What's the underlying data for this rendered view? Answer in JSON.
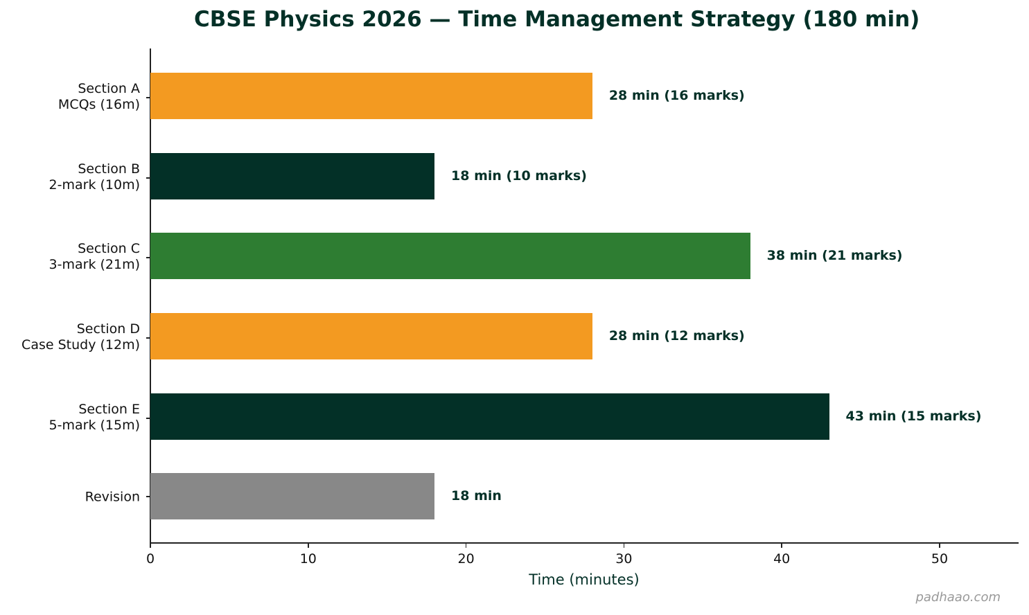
{
  "chart_data": {
    "type": "bar",
    "orientation": "horizontal",
    "title": "CBSE Physics 2026 — Time Management Strategy (180 min)",
    "xlabel": "Time (minutes)",
    "ylabel": "",
    "xlim": [
      0,
      55
    ],
    "xticks": [
      "0",
      "10",
      "20",
      "30",
      "40",
      "50"
    ],
    "grid": false,
    "legend": null,
    "categories": [
      [
        "Section A",
        "MCQs (16m)"
      ],
      [
        "Section B",
        "2-mark (10m)"
      ],
      [
        "Section C",
        "3-mark (21m)"
      ],
      [
        "Section D",
        "Case Study (12m)"
      ],
      [
        "Section E",
        "5-mark (15m)"
      ],
      [
        "Revision"
      ]
    ],
    "values": [
      28,
      18,
      38,
      28,
      43,
      18
    ],
    "marks": [
      16,
      10,
      21,
      12,
      15,
      null
    ],
    "data_labels": [
      "28 min (16 marks)",
      "18 min (10 marks)",
      "38 min (21 marks)",
      "28 min (12 marks)",
      "43 min (15 marks)",
      "18 min"
    ],
    "colors": [
      "#F39A21",
      "#033027",
      "#2E7D32",
      "#F39A21",
      "#033027",
      "#888888"
    ],
    "watermark": "padhaao.com"
  }
}
